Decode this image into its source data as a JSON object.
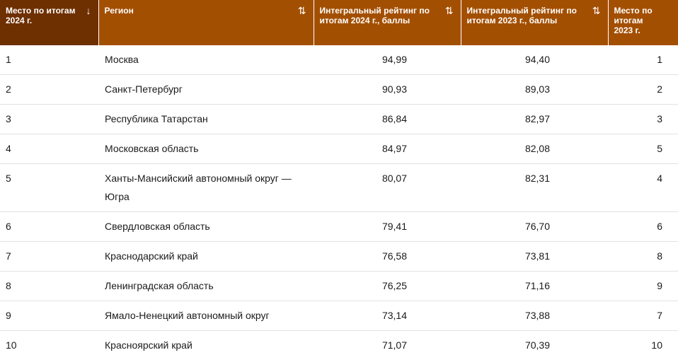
{
  "colors": {
    "header_bg": "#a34f02",
    "header_active_bg": "#6e2f01",
    "header_text": "#ffffff",
    "row_border": "#e2e2e2"
  },
  "headers": [
    {
      "label": "Место по итогам 2024 г.",
      "sort_icon": "↓"
    },
    {
      "label": "Регион",
      "sort_icon": "⇅"
    },
    {
      "label": "Интегральный рейтинг по итогам 2024 г., баллы",
      "sort_icon": "⇅"
    },
    {
      "label": "Интегральный рейтинг по итогам 2023 г., баллы",
      "sort_icon": "⇅"
    },
    {
      "label": "Место по итогам 2023 г.",
      "sort_icon": ""
    }
  ],
  "rows": [
    {
      "place": "1",
      "region": "Москва",
      "score2024": "94,99",
      "score2023": "94,40",
      "place2023": "1"
    },
    {
      "place": "2",
      "region": "Санкт-Петербург",
      "score2024": "90,93",
      "score2023": "89,03",
      "place2023": "2"
    },
    {
      "place": "3",
      "region": "Республика Татарстан",
      "score2024": "86,84",
      "score2023": "82,97",
      "place2023": "3"
    },
    {
      "place": "4",
      "region": "Московская область",
      "score2024": "84,97",
      "score2023": "82,08",
      "place2023": "5"
    },
    {
      "place": "5",
      "region": "Ханты-Мансийский автономный округ — Югра",
      "score2024": "80,07",
      "score2023": "82,31",
      "place2023": "4"
    },
    {
      "place": "6",
      "region": "Свердловская область",
      "score2024": "79,41",
      "score2023": "76,70",
      "place2023": "6"
    },
    {
      "place": "7",
      "region": "Краснодарский край",
      "score2024": "76,58",
      "score2023": "73,81",
      "place2023": "8"
    },
    {
      "place": "8",
      "region": "Ленинградская область",
      "score2024": "76,25",
      "score2023": "71,16",
      "place2023": "9"
    },
    {
      "place": "9",
      "region": "Ямало-Ненецкий автономный округ",
      "score2024": "73,14",
      "score2023": "73,88",
      "place2023": "7"
    },
    {
      "place": "10",
      "region": "Красноярский край",
      "score2024": "71,07",
      "score2023": "70,39",
      "place2023": "10"
    }
  ]
}
